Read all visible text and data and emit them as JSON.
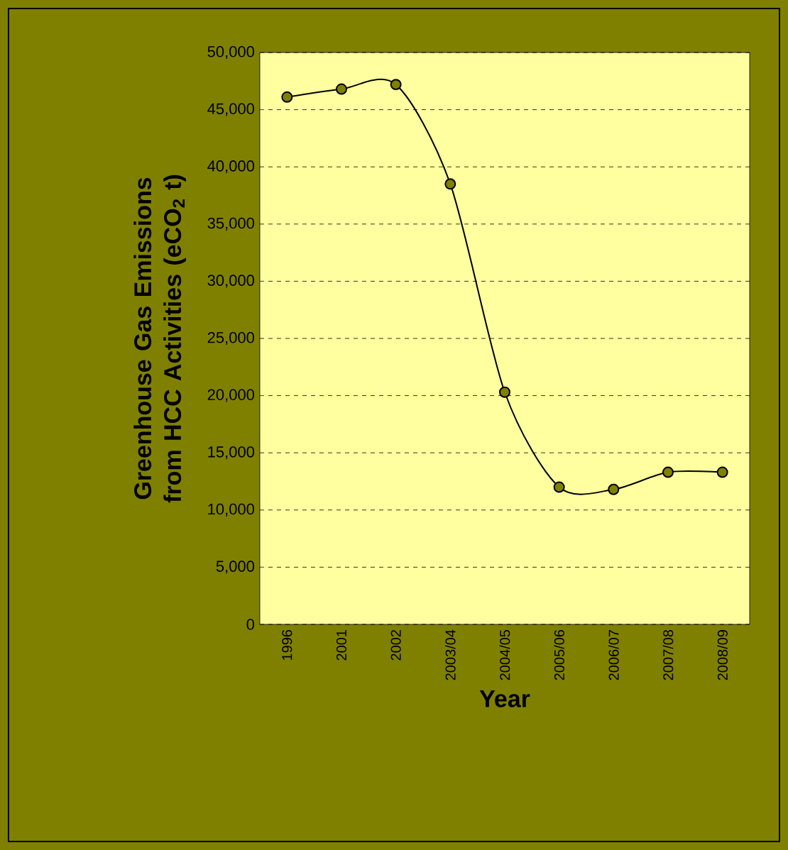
{
  "chart_data": {
    "type": "line",
    "categories": [
      "1996",
      "2001",
      "2002",
      "2003/04",
      "2004/05",
      "2005/06",
      "2006/07",
      "2007/08",
      "2008/09"
    ],
    "series": [
      {
        "color": "#808000",
        "values": [
          46100,
          46800,
          47200,
          38500,
          20300,
          12000,
          11800,
          13300,
          13300
        ]
      }
    ],
    "xlabel": "Year",
    "ylabel": "Greenhouse Gas Emissions from HCC Activities (eCO$_{2}$ t)",
    "ylim": [
      0,
      50000
    ],
    "yticks": [
      {
        "value": 0,
        "label": "0"
      },
      {
        "value": 5000,
        "label": "5,000"
      },
      {
        "value": 10000,
        "label": "10,000"
      },
      {
        "value": 15000,
        "label": "15,000"
      },
      {
        "value": 20000,
        "label": "20,000"
      },
      {
        "value": 25000,
        "label": "25,000"
      },
      {
        "value": 30000,
        "label": "30,000"
      },
      {
        "value": 35000,
        "label": "35,000"
      },
      {
        "value": 40000,
        "label": "40,000"
      },
      {
        "value": 45000,
        "label": "45,000"
      },
      {
        "value": 50000,
        "label": "50,000"
      }
    ],
    "grid": "y",
    "marker": "circle",
    "line_style": "solid"
  }
}
